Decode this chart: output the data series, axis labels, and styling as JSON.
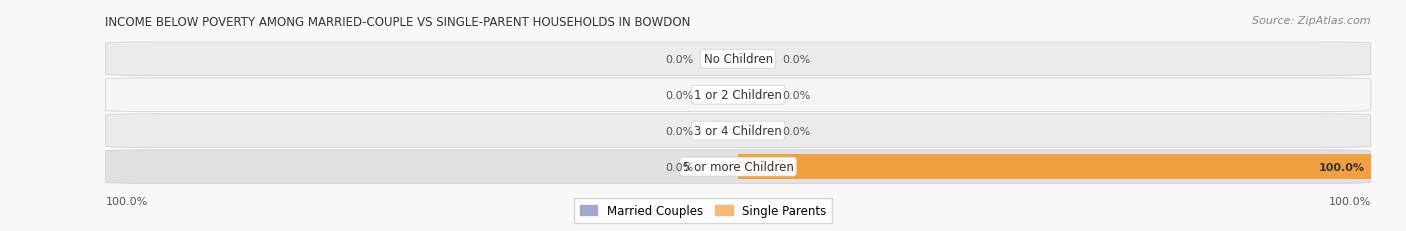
{
  "title": "INCOME BELOW POVERTY AMONG MARRIED-COUPLE VS SINGLE-PARENT HOUSEHOLDS IN BOWDON",
  "source": "Source: ZipAtlas.com",
  "categories": [
    "No Children",
    "1 or 2 Children",
    "3 or 4 Children",
    "5 or more Children"
  ],
  "married_values": [
    0.0,
    0.0,
    0.0,
    0.0
  ],
  "single_values": [
    0.0,
    0.0,
    0.0,
    100.0
  ],
  "married_color": "#a0a8cc",
  "single_color": "#f5b97a",
  "single_color_full": "#f0a040",
  "bar_bg_light": "#f0f0f0",
  "bar_bg_dark": "#e5e5e5",
  "row_sep_color": "#cccccc",
  "label_color": "#444444",
  "title_color": "#333333",
  "source_color": "#888888",
  "legend_married": "Married Couples",
  "legend_single": "Single Parents",
  "max_val": 100,
  "figsize": [
    14.06,
    2.32
  ],
  "dpi": 100
}
